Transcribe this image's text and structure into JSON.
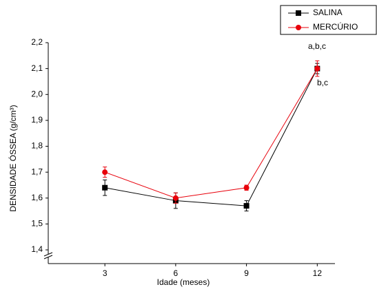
{
  "chart_data": {
    "type": "line",
    "x_label": "Idade (meses)",
    "y_label": "DENSIDADE ÓSSEA (g/cm³)",
    "x": [
      3,
      6,
      9,
      12
    ],
    "xlim": [
      0.6,
      12.75
    ],
    "xticks": [
      3,
      6,
      9,
      12
    ],
    "ylim": [
      1.347,
      2.2
    ],
    "yticks": [
      {
        "value": 1.4,
        "label": "1,4"
      },
      {
        "value": 1.5,
        "label": "1,5"
      },
      {
        "value": 1.6,
        "label": "1,6"
      },
      {
        "value": 1.7,
        "label": "1,7"
      },
      {
        "value": 1.8,
        "label": "1,8"
      },
      {
        "value": 1.9,
        "label": "1,9"
      },
      {
        "value": 2.0,
        "label": "2,0"
      },
      {
        "value": 2.1,
        "label": "2,1"
      },
      {
        "value": 2.2,
        "label": "2,2"
      }
    ],
    "series": [
      {
        "name": "SALINA",
        "color": "#000000",
        "marker": "square",
        "values": [
          1.64,
          1.59,
          1.57,
          2.1
        ],
        "errors": [
          0.03,
          0.03,
          0.02,
          0.02
        ]
      },
      {
        "name": "MERCÚRIO",
        "color": "#e8000b",
        "marker": "circle",
        "values": [
          1.7,
          1.6,
          1.64,
          2.1
        ],
        "errors": [
          0.02,
          0.02,
          0.01,
          0.03
        ]
      }
    ],
    "annotations": [
      "a,b,c",
      "b,c"
    ],
    "legend": "upper right"
  }
}
